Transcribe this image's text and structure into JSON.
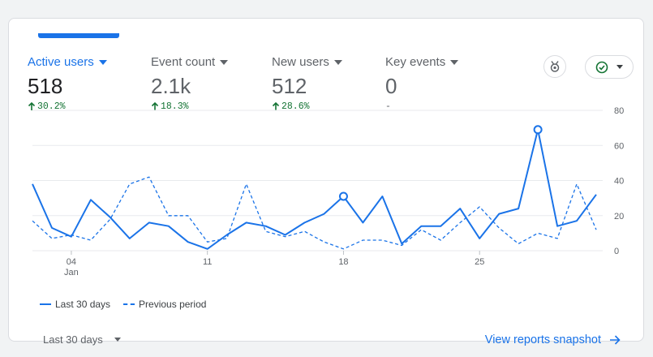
{
  "metrics": [
    {
      "label": "Active users",
      "value": "518",
      "change": "30.2%"
    },
    {
      "label": "Event count",
      "value": "2.1k",
      "change": "18.3%"
    },
    {
      "label": "New users",
      "value": "512",
      "change": "28.6%"
    },
    {
      "label": "Key events",
      "value": "0",
      "change": "-"
    }
  ],
  "toolbar": {
    "compare_icon": "ai-insights-icon",
    "status_icon": "check-circle-icon"
  },
  "legend": {
    "current": "Last 30 days",
    "previous": "Previous period"
  },
  "footer": {
    "date_range": "Last 30 days",
    "link": "View reports snapshot"
  },
  "colors": {
    "accent": "#1a73e8",
    "positive": "#137333",
    "grid": "#e8eaed"
  },
  "chart_data": {
    "type": "line",
    "x_tick_labels": [
      {
        "day": 2,
        "label": "04",
        "sublabel": "Jan"
      },
      {
        "day": 9,
        "label": "11"
      },
      {
        "day": 16,
        "label": "18"
      },
      {
        "day": 23,
        "label": "25"
      }
    ],
    "yticks": [
      0,
      20,
      40,
      60,
      80
    ],
    "ylim": [
      0,
      80
    ],
    "series": [
      {
        "name": "Last 30 days",
        "style": "solid",
        "values": [
          38,
          13,
          8,
          29,
          19,
          7,
          16,
          14,
          5,
          1,
          9,
          16,
          14,
          9,
          16,
          21,
          31,
          16,
          31,
          4,
          14,
          14,
          24,
          7,
          21,
          24,
          69,
          14,
          17,
          32
        ],
        "highlighted_days": [
          16,
          26
        ]
      },
      {
        "name": "Previous period",
        "style": "dashed",
        "values": [
          17,
          7,
          9,
          6,
          18,
          38,
          42,
          20,
          20,
          5,
          7,
          38,
          11,
          8,
          11,
          5,
          1,
          6,
          6,
          3,
          12,
          6,
          16,
          25,
          13,
          4,
          10,
          7,
          38,
          12
        ]
      }
    ]
  }
}
